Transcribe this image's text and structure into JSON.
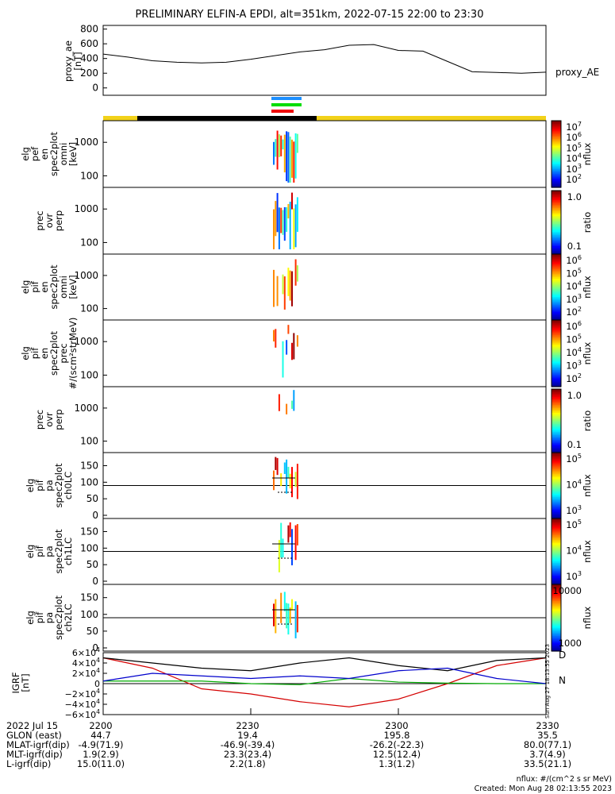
{
  "title": "PRELIMINARY ELFIN-A EPDI, alt=351km, 2022-07-15 22:00 to 23:30",
  "chart_data": [
    {
      "type": "line",
      "panel": "proxy_ae",
      "ylabel": "proxy_ae [nT]",
      "legend": "proxy_AE",
      "y_ticks": [
        "800",
        "600",
        "400",
        "200",
        "0"
      ],
      "ylim": [
        -100,
        850
      ],
      "x_minutes": [
        0,
        5,
        10,
        15,
        20,
        25,
        30,
        35,
        40,
        45,
        50,
        55,
        60,
        65,
        70,
        75,
        80,
        85,
        90
      ],
      "values": [
        460,
        420,
        370,
        350,
        340,
        350,
        390,
        440,
        490,
        520,
        580,
        590,
        510,
        500,
        360,
        220,
        210,
        200,
        215
      ]
    },
    {
      "type": "heatmap",
      "panel": "elf_pef_en_spec2plot_omni",
      "ylabel": "elg pef en spec2plot omni [keV]",
      "y_ticks": [
        "1000",
        "100"
      ],
      "colorbar_label": "nflux",
      "colorbar_ticks": [
        "10^7",
        "10^6",
        "10^5",
        "10^4",
        "10^3",
        "10^2"
      ]
    },
    {
      "type": "heatmap",
      "panel": "prec_ovr_perp",
      "ylabel": "prec ovr perp",
      "y_ticks": [
        "1000",
        "100"
      ],
      "colorbar_label": "ratio",
      "colorbar_ticks": [
        "1.0",
        "0.1"
      ]
    },
    {
      "type": "heatmap",
      "panel": "elg_pif_en_spec2plot_omni",
      "ylabel": "elg pif en spec2plot omni [keV]",
      "y_ticks": [
        "1000",
        "100"
      ],
      "colorbar_label": "nflux",
      "colorbar_ticks": [
        "10^6",
        "10^5",
        "10^4",
        "10^3",
        "10^2"
      ]
    },
    {
      "type": "heatmap",
      "panel": "elg_pif_en_spec2plot_prec",
      "ylabel": "elg pif en spec2plot prec #/(scm²strMeV)",
      "y_ticks": [
        "1000",
        "100"
      ],
      "colorbar_label": "nflux",
      "colorbar_ticks": [
        "10^6",
        "10^5",
        "10^4",
        "10^3",
        "10^2"
      ]
    },
    {
      "type": "heatmap",
      "panel": "prec_ovr_perp_2",
      "ylabel": "prec ovr perp",
      "y_ticks": [
        "1000",
        "100"
      ],
      "colorbar_label": "ratio",
      "colorbar_ticks": [
        "1.0",
        "0.1"
      ]
    },
    {
      "type": "heatmap",
      "panel": "elg_pif_pa_spec2plot_ch0LC",
      "ylabel": "elg pif pa spec2plot ch0LC",
      "y_ticks": [
        "150",
        "100",
        "50",
        "0"
      ],
      "colorbar_label": "nflux",
      "colorbar_ticks": [
        "10^5",
        "10^4",
        "10^3"
      ]
    },
    {
      "type": "heatmap",
      "panel": "elg_pif_pa_spec2plot_ch1LC",
      "ylabel": "elg pif pa spec2plot ch1LC",
      "y_ticks": [
        "150",
        "100",
        "50",
        "0"
      ],
      "colorbar_label": "nflux",
      "colorbar_ticks": [
        "10^5",
        "10^4",
        "10^3"
      ]
    },
    {
      "type": "heatmap",
      "panel": "elg_pif_pa_spec2plot_ch2LC",
      "ylabel": "elg pif pa spec2plot ch2LC",
      "y_ticks": [
        "150",
        "100",
        "50",
        "0"
      ],
      "colorbar_label": "nflux",
      "colorbar_ticks": [
        "10000",
        "1000"
      ]
    },
    {
      "type": "line",
      "panel": "IGRF",
      "ylabel": "IGRF [nT]",
      "ylim": [
        -60000,
        60000
      ],
      "y_ticks": [
        "6×10^4",
        "4×10^4",
        "2×10^4",
        "0",
        "−2×10^4",
        "−4×10^4",
        "−6×10^4"
      ],
      "x_minutes": [
        0,
        10,
        20,
        30,
        40,
        50,
        60,
        70,
        80,
        90
      ],
      "series": [
        {
          "name": "D",
          "color": "#d40000",
          "values": [
            50000,
            30000,
            -10000,
            -20000,
            -35000,
            -45000,
            -30000,
            0,
            35000,
            50000
          ]
        },
        {
          "name": "N",
          "color": "#00aa00",
          "values": [
            5000,
            5000,
            5000,
            0,
            -2000,
            10000,
            3000,
            1000,
            0,
            0
          ]
        },
        {
          "color": "#000000",
          "values": [
            50000,
            40000,
            30000,
            25000,
            40000,
            50000,
            35000,
            25000,
            45000,
            50000
          ]
        },
        {
          "color": "#0000cc",
          "values": [
            5000,
            20000,
            15000,
            10000,
            15000,
            10000,
            25000,
            30000,
            10000,
            0
          ]
        }
      ]
    }
  ],
  "x_axis": {
    "labels": [
      "2200",
      "2230",
      "2300",
      "2330"
    ],
    "x_minutes": [
      0,
      30,
      60,
      90
    ]
  },
  "footer": {
    "rows": [
      {
        "label": "2022 Jul 15",
        "values": [
          "2200",
          "2230",
          "2300",
          "2330"
        ]
      },
      {
        "label": "GLON (east)",
        "values": [
          "44.7",
          "19.4",
          "195.8",
          "35.5"
        ]
      },
      {
        "label": "MLAT-igrf(dip)",
        "values": [
          "-4.9(71.9)",
          "-46.9(-39.4)",
          "-26.2(-22.3)",
          "80.0(77.1)"
        ]
      },
      {
        "label": "MLT-igrf(dip)",
        "values": [
          "1.9(2.9)",
          "23.3(23.4)",
          "12.5(12.4)",
          "3.7(4.9)"
        ]
      },
      {
        "label": "L-igrf(dip)",
        "values": [
          "15.0(11.0)",
          "2.2(1.8)",
          "1.3(1.2)",
          "33.5(21.1)"
        ]
      }
    ],
    "units_note": "nflux: #/(cm^2 s sr MeV)",
    "created": "Created: Mon Aug 28 02:13:55 2023",
    "side_stamp": "Sun Aug 27 18:13:55 2023"
  },
  "colors": {
    "sunlight_bar": "#f2d21a",
    "shadow_bar": "#000000",
    "bar_blue": "#1c8fff",
    "bar_green": "#00dd00",
    "bar_red": "#ee0000"
  }
}
